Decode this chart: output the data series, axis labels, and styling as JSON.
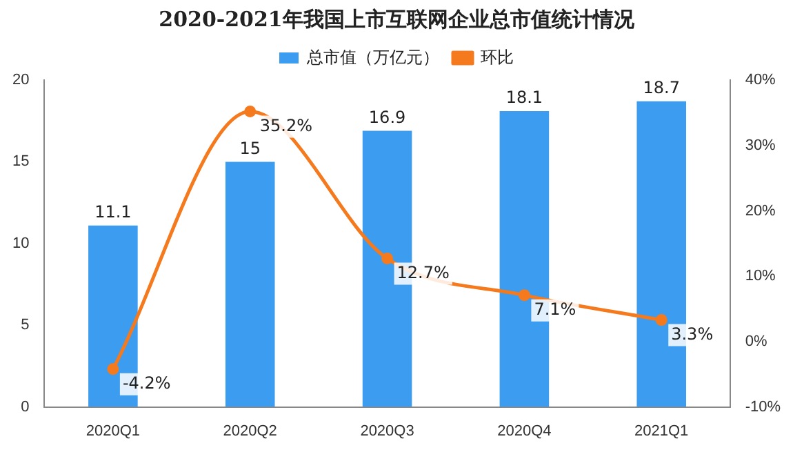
{
  "chart_data": {
    "type": "bar",
    "title": "2020-2021年我国上市互联网企业总市值统计情况",
    "categories": [
      "2020Q1",
      "2020Q2",
      "2020Q3",
      "2020Q4",
      "2021Q1"
    ],
    "series": [
      {
        "name": "总市值（万亿元）",
        "color": "#3c9cef",
        "values": [
          11.1,
          15,
          16.9,
          18.1,
          18.7
        ],
        "value_labels": [
          "11.1",
          "15",
          "16.9",
          "18.1",
          "18.7"
        ]
      },
      {
        "name": "环比",
        "type": "line",
        "axis": "y2",
        "color": "#f57a1e",
        "values": [
          -4.2,
          35.2,
          12.7,
          7.1,
          3.3
        ],
        "value_labels": [
          "-4.2%",
          "35.2%",
          "12.7%",
          "7.1%",
          "3.3%"
        ]
      }
    ],
    "ylim": [
      0,
      20
    ],
    "yticks": [
      0,
      5,
      10,
      15,
      20
    ],
    "y2lim": [
      -10,
      40
    ],
    "y2ticks": [
      {
        "value": -10,
        "label": "-10%"
      },
      {
        "value": 0,
        "label": "0%"
      },
      {
        "value": 10,
        "label": "10%"
      },
      {
        "value": 20,
        "label": "20%"
      },
      {
        "value": 30,
        "label": "30%"
      },
      {
        "value": 40,
        "label": "40%"
      }
    ],
    "grid": false,
    "legend": "top",
    "marker": "circle",
    "line_style": "solid"
  }
}
